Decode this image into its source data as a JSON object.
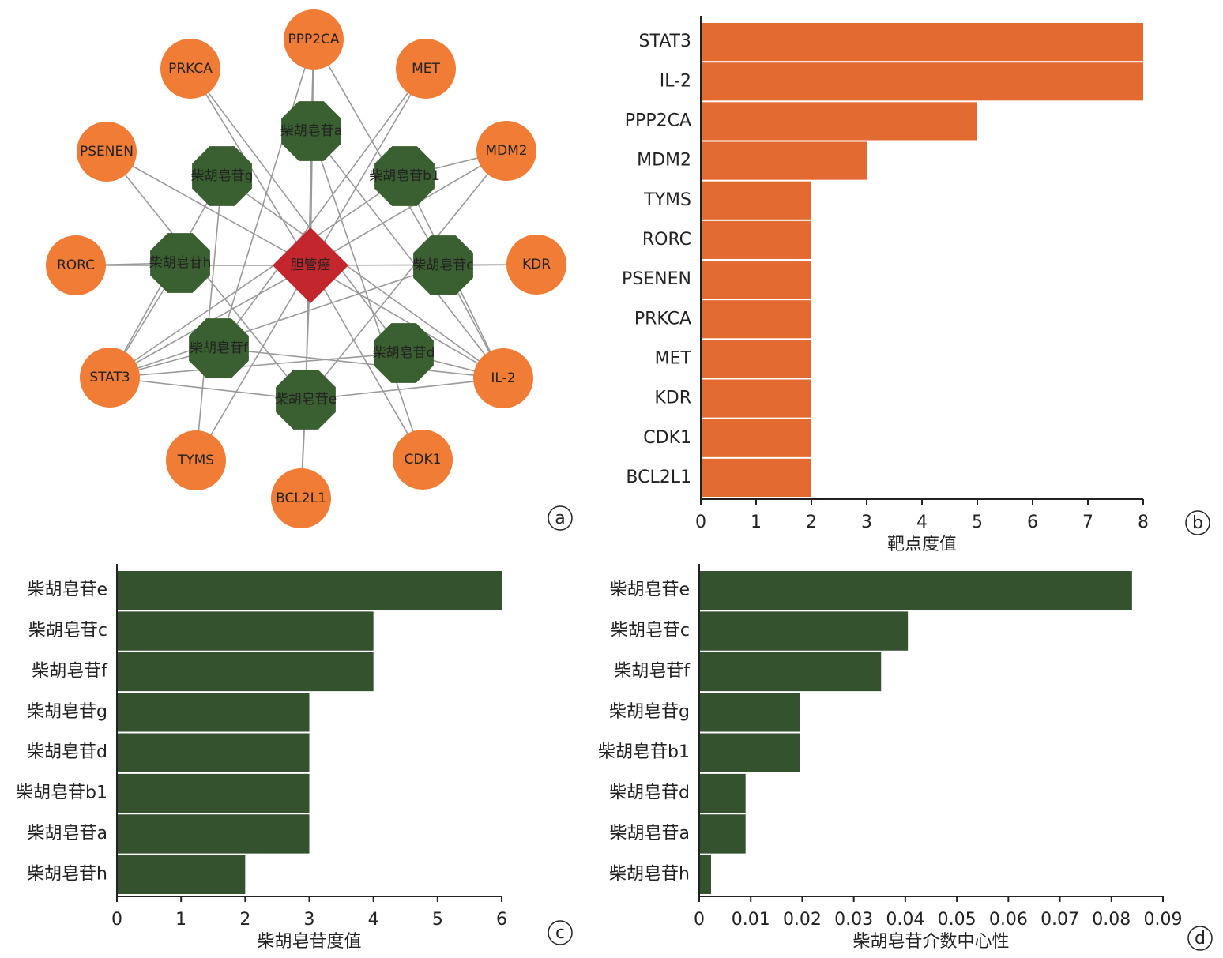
{
  "network": {
    "nodes": [
      "胆管癌",
      "PPP2CA",
      "PRKCA",
      "MET",
      "PSENEN",
      "MDM2",
      "RORC",
      "KDR",
      "STAT3",
      "IL-2",
      "TYMS",
      "CDK1",
      "BCL2L1",
      "柴胡皂苷a",
      "柴胡皂苷g",
      "柴胡皂苷b1",
      "柴胡皂苷h",
      "柴胡皂苷c",
      "柴胡皂苷f",
      "柴胡皂苷d",
      "柴胡皂苷e"
    ]
  },
  "panel_labels": [
    "a",
    "b",
    "c",
    "d"
  ],
  "chart_data": [
    {
      "type": "bar",
      "orientation": "horizontal",
      "categories": [
        "STAT3",
        "IL-2",
        "PPP2CA",
        "MDM2",
        "TYMS",
        "RORC",
        "PSENEN",
        "PRKCA",
        "MET",
        "KDR",
        "CDK1",
        "BCL2L1"
      ],
      "values": [
        8,
        8,
        5,
        3,
        2,
        2,
        2,
        2,
        2,
        2,
        2,
        2
      ],
      "color": "#e36a31",
      "xlim": [
        0,
        8
      ],
      "xticks": [
        0,
        1,
        2,
        3,
        4,
        5,
        6,
        7,
        8
      ],
      "xlabel": "靶点度值"
    },
    {
      "type": "bar",
      "orientation": "horizontal",
      "categories": [
        "柴胡皂苷e",
        "柴胡皂苷c",
        "柴胡皂苷f",
        "柴胡皂苷g",
        "柴胡皂苷d",
        "柴胡皂苷b1",
        "柴胡皂苷a",
        "柴胡皂苷h"
      ],
      "values": [
        6,
        4,
        4,
        3,
        3,
        3,
        3,
        2
      ],
      "color": "#33522d",
      "xlim": [
        0,
        6
      ],
      "xticks": [
        0,
        1,
        2,
        3,
        4,
        5,
        6
      ],
      "xlabel": "柴胡皂苷度值"
    },
    {
      "type": "bar",
      "orientation": "horizontal",
      "categories": [
        "柴胡皂苷e",
        "柴胡皂苷c",
        "柴胡皂苷f",
        "柴胡皂苷g",
        "柴胡皂苷b1",
        "柴胡皂苷d",
        "柴胡皂苷a",
        "柴胡皂苷h"
      ],
      "values": [
        0.084,
        0.0405,
        0.0353,
        0.0196,
        0.0196,
        0.009,
        0.009,
        0.0023
      ],
      "color": "#33522d",
      "xlim": [
        0,
        0.09
      ],
      "xticks": [
        0,
        0.01,
        0.02,
        0.03,
        0.04,
        0.05,
        0.06,
        0.07,
        0.08,
        0.09
      ],
      "xlabel": "柴胡皂苷介数中心性"
    }
  ]
}
